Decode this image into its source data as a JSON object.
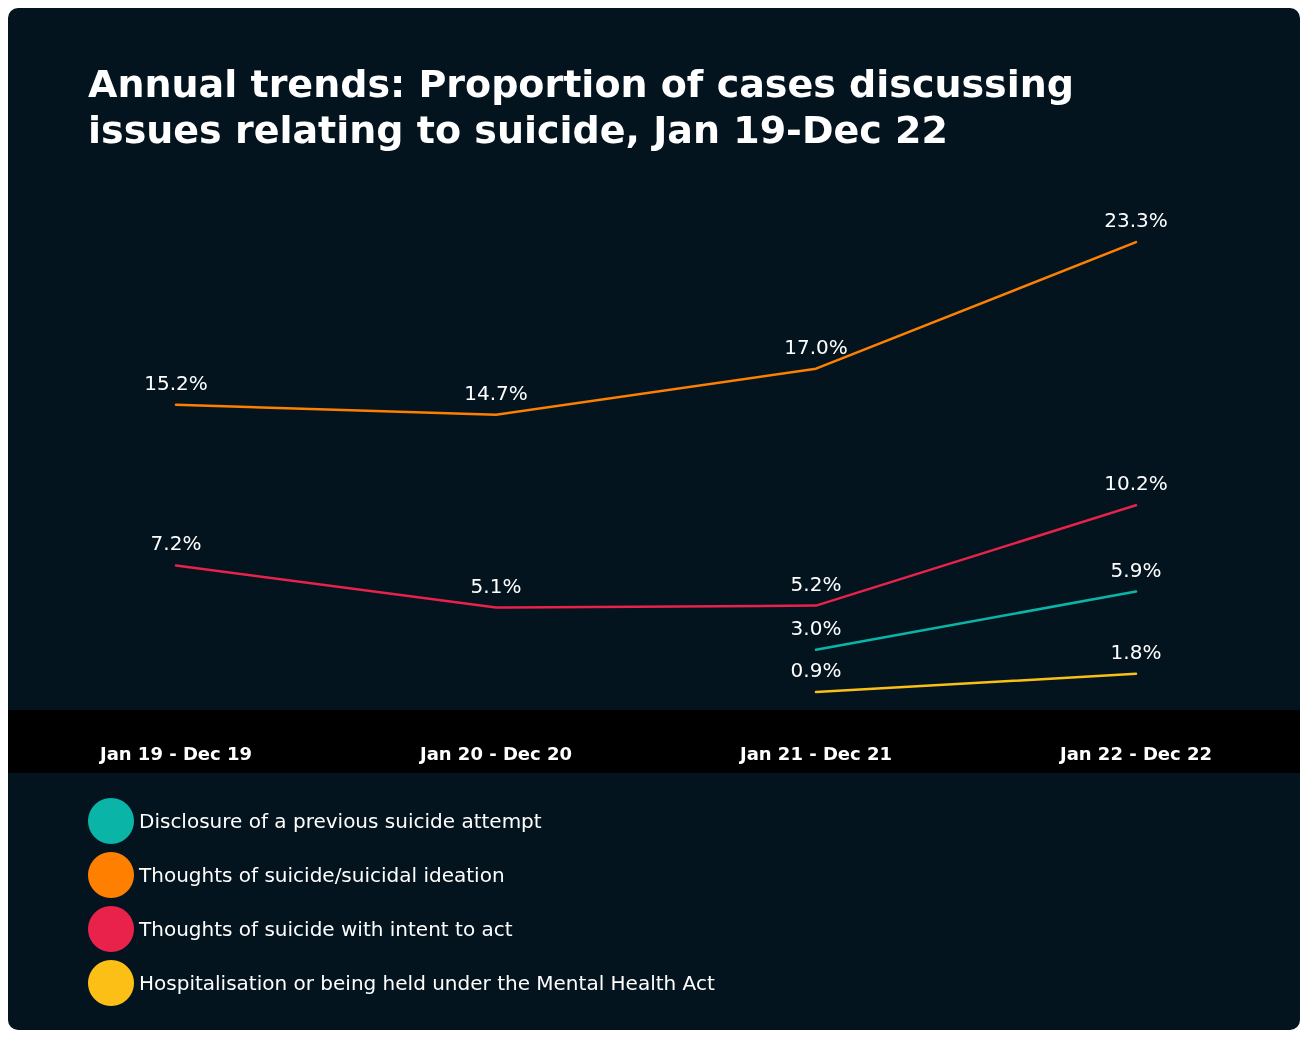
{
  "chart_data": {
    "type": "line",
    "title": "Annual trends: Proportion of cases discussing issues relating to suicide, Jan 19-Dec 22",
    "categories": [
      "Jan 19 - Dec 19",
      "Jan 20 - Dec 20",
      "Jan 21 - Dec 21",
      "Jan 22 - Dec 22"
    ],
    "series": [
      {
        "name": "Disclosure of a previous suicide attempt",
        "color": "#0ab5a8",
        "values": [
          null,
          null,
          3.0,
          5.9
        ],
        "value_labels": [
          null,
          null,
          "3.0%",
          "5.9%"
        ]
      },
      {
        "name": "Thoughts of suicide/suicidal ideation",
        "color": "#ff7f00",
        "values": [
          15.2,
          14.7,
          17.0,
          23.3
        ],
        "value_labels": [
          "15.2%",
          "14.7%",
          "17.0%",
          "23.3%"
        ]
      },
      {
        "name": "Thoughts of suicide with intent to act",
        "color": "#e8224a",
        "values": [
          7.2,
          5.1,
          5.2,
          10.2
        ],
        "value_labels": [
          "7.2%",
          "5.1%",
          "5.2%",
          "10.2%"
        ]
      },
      {
        "name": "Hospitalisation or being held under the Mental Health Act",
        "color": "#fbbf16",
        "values": [
          null,
          null,
          0.9,
          1.8
        ],
        "value_labels": [
          null,
          null,
          "0.9%",
          "1.8%"
        ]
      }
    ],
    "legend": "bottom left",
    "grid": false,
    "marker": "none",
    "line_style": "solid",
    "tick_labels": "x"
  }
}
